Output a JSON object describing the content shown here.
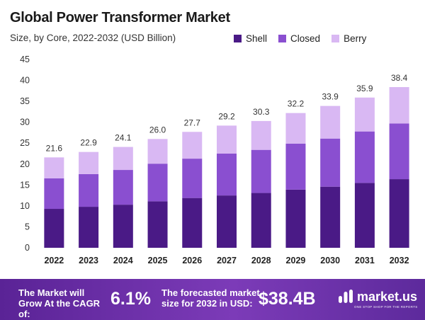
{
  "header": {
    "title": "Global Power Transformer Market",
    "subtitle": "Size, by Core, 2022-2032 (USD Billion)"
  },
  "legend": [
    {
      "label": "Shell",
      "color": "#4a1a86"
    },
    {
      "label": "Closed",
      "color": "#8a4fd0"
    },
    {
      "label": "Berry",
      "color": "#d9b8f3"
    }
  ],
  "chart_data": {
    "type": "bar",
    "stacked": true,
    "title": "Global Power Transformer Market",
    "subtitle": "Size, by Core, 2022-2032 (USD Billion)",
    "categories": [
      "2022",
      "2023",
      "2024",
      "2025",
      "2026",
      "2027",
      "2028",
      "2029",
      "2030",
      "2031",
      "2032"
    ],
    "series": [
      {
        "name": "Shell",
        "color": "#4a1a86",
        "values": [
          9.3,
          9.8,
          10.3,
          11.1,
          11.9,
          12.5,
          13.1,
          13.9,
          14.6,
          15.5,
          16.4
        ]
      },
      {
        "name": "Closed",
        "color": "#8a4fd0",
        "values": [
          7.3,
          7.8,
          8.3,
          9.0,
          9.4,
          10.0,
          10.3,
          11.0,
          11.5,
          12.3,
          13.3
        ]
      },
      {
        "name": "Berry",
        "color": "#d9b8f3",
        "values": [
          5.0,
          5.3,
          5.5,
          5.9,
          6.4,
          6.7,
          6.9,
          7.3,
          7.8,
          8.1,
          8.7
        ]
      }
    ],
    "totals": [
      "21.6",
      "22.9",
      "24.1",
      "26.0",
      "27.7",
      "29.2",
      "30.3",
      "32.2",
      "33.9",
      "35.9",
      "38.4"
    ],
    "yticks": [
      "0",
      "5",
      "10",
      "15",
      "20",
      "25",
      "30",
      "35",
      "40",
      "45"
    ],
    "ylim": [
      0,
      45
    ],
    "xlabel": "",
    "ylabel": "",
    "legend_position": "top-right"
  },
  "footer": {
    "cagr_label": "The Market will Grow At the CAGR of:",
    "cagr_value": "6.1%",
    "size_label": "The forecasted market size for 2032 in USD:",
    "size_value": "$38.4B",
    "brand": "market.us",
    "tagline": "ONE STOP SHOP FOR THE REPORTS"
  }
}
